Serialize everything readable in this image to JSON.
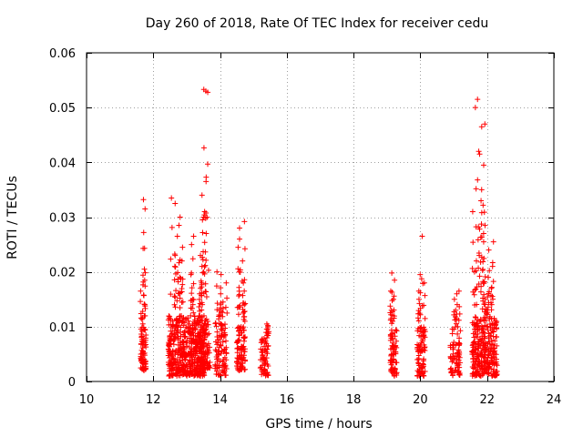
{
  "chart_data": {
    "type": "scatter",
    "title": "Day 260 of 2018, Rate Of TEC Index for receiver cedu",
    "xlabel": "GPS time / hours",
    "ylabel": "ROTI / TECUs",
    "xlim": [
      10,
      24
    ],
    "ylim": [
      0,
      0.06
    ],
    "xticks": [
      10,
      12,
      14,
      16,
      18,
      20,
      22,
      24
    ],
    "xtick_labels": [
      "10",
      "12",
      "14",
      "16",
      "18",
      "20",
      "22",
      "24"
    ],
    "yticks": [
      0,
      0.01,
      0.02,
      0.03,
      0.04,
      0.05,
      0.06
    ],
    "ytick_labels": [
      "0",
      "0.01",
      "0.02",
      "0.03",
      "0.04",
      "0.05",
      "0.06"
    ],
    "grid": true,
    "marker": "+",
    "color": "#ff0000",
    "series": [
      {
        "name": "ROTI",
        "clusters": [
          {
            "x_range": [
              11.62,
              11.78
            ],
            "n": 70,
            "y_base": [
              0.002,
              0.01
            ],
            "peaks": [
              0.0332,
              0.0315,
              0.0272,
              0.0205,
              0.0185,
              0.0165,
              0.0128
            ]
          },
          {
            "x_range": [
              12.45,
              13.05
            ],
            "n": 260,
            "y_base": [
              0.001,
              0.012
            ],
            "peaks": [
              0.0335,
              0.0325,
              0.03,
              0.0285,
              0.0265,
              0.0245,
              0.023,
              0.022,
              0.021,
              0.019
            ]
          },
          {
            "x_range": [
              13.05,
              13.55
            ],
            "n": 260,
            "y_base": [
              0.001,
              0.012
            ],
            "peaks": [
              0.0265,
              0.025,
              0.023,
              0.021,
              0.0195,
              0.018,
              0.016,
              0.015
            ]
          },
          {
            "x_range": [
              13.4,
              13.7
            ],
            "n": 70,
            "y_base": [
              0.002,
              0.012
            ],
            "peaks": [
              0.0533,
              0.053,
              0.0528,
              0.0365,
              0.034,
              0.031,
              0.03,
              0.0295,
              0.027
            ]
          },
          {
            "x_range": [
              13.85,
              14.2
            ],
            "n": 90,
            "y_base": [
              0.001,
              0.011
            ],
            "peaks": [
              0.02,
              0.0195,
              0.018,
              0.016,
              0.0145,
              0.013
            ]
          },
          {
            "x_range": [
              14.5,
              14.75
            ],
            "n": 80,
            "y_base": [
              0.002,
              0.01
            ],
            "peaks": [
              0.0292,
              0.028,
              0.026,
              0.0245,
              0.022,
              0.02,
              0.018,
              0.0165,
              0.014
            ]
          },
          {
            "x_range": [
              15.2,
              15.45
            ],
            "n": 60,
            "y_base": [
              0.001,
              0.008
            ],
            "peaks": [
              0.0105,
              0.0102,
              0.01
            ]
          },
          {
            "x_range": [
              19.1,
              19.3
            ],
            "n": 70,
            "y_base": [
              0.001,
              0.01
            ],
            "peaks": [
              0.0198,
              0.0185,
              0.0165,
              0.015,
              0.013
            ]
          },
          {
            "x_range": [
              19.9,
              20.15
            ],
            "n": 80,
            "y_base": [
              0.001,
              0.01
            ],
            "peaks": [
              0.0265,
              0.0195,
              0.018,
              0.0165,
              0.015
            ]
          },
          {
            "x_range": [
              20.9,
              21.2
            ],
            "n": 70,
            "y_base": [
              0.001,
              0.01
            ],
            "peaks": [
              0.0165,
              0.016,
              0.015,
              0.013
            ]
          },
          {
            "x_range": [
              21.55,
              21.95
            ],
            "n": 150,
            "y_base": [
              0.001,
              0.012
            ],
            "peaks": [
              0.0515,
              0.05,
              0.047,
              0.0465,
              0.042,
              0.0415,
              0.0395,
              0.035,
              0.033,
              0.031,
              0.027,
              0.0255,
              0.022,
              0.02,
              0.018
            ]
          },
          {
            "x_range": [
              21.9,
              22.3
            ],
            "n": 140,
            "y_base": [
              0.001,
              0.012
            ],
            "peaks": [
              0.0255,
              0.024,
              0.021,
              0.019,
              0.017,
              0.015,
              0.013
            ]
          }
        ]
      }
    ]
  }
}
